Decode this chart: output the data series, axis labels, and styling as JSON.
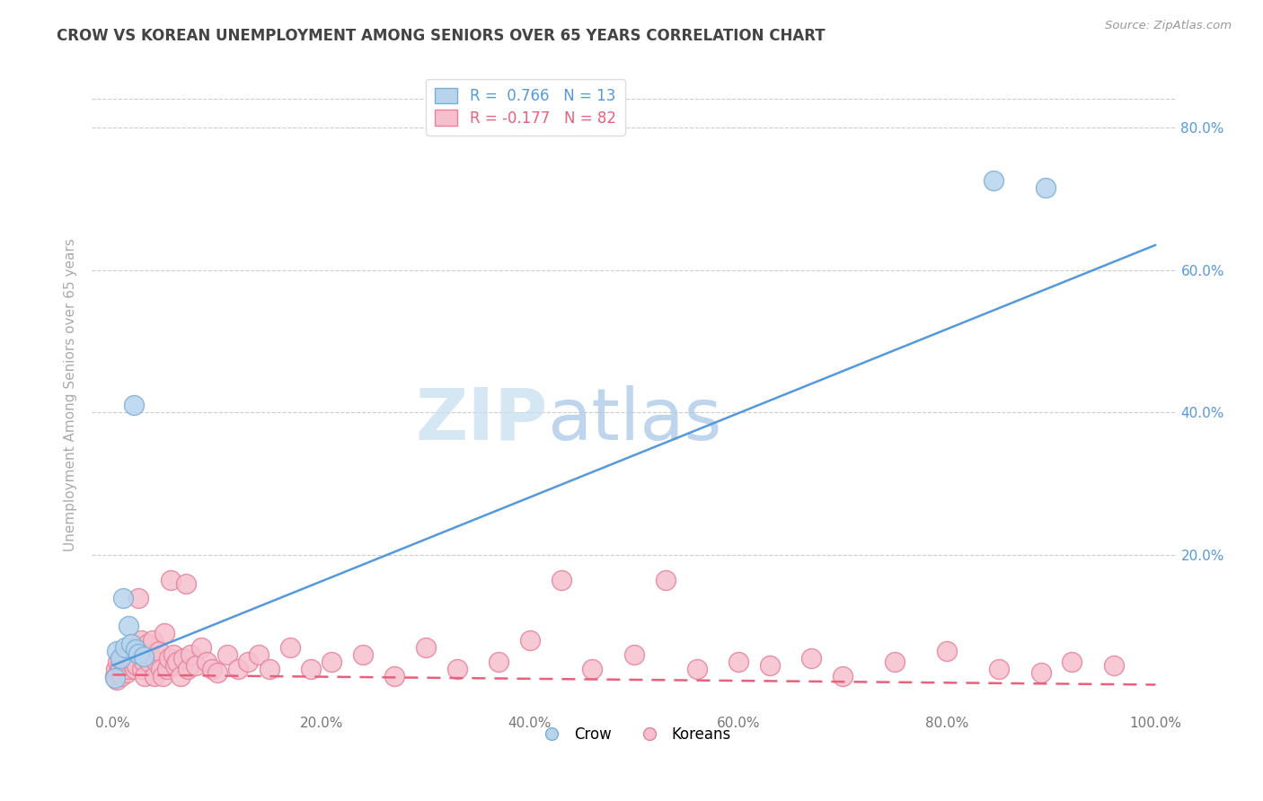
{
  "title": "CROW VS KOREAN UNEMPLOYMENT AMONG SENIORS OVER 65 YEARS CORRELATION CHART",
  "source": "Source: ZipAtlas.com",
  "ylabel": "Unemployment Among Seniors over 65 years",
  "xlim": [
    -0.02,
    1.02
  ],
  "ylim": [
    -0.02,
    0.87
  ],
  "xtick_labels": [
    "0.0%",
    "20.0%",
    "40.0%",
    "60.0%",
    "80.0%",
    "100.0%"
  ],
  "xtick_vals": [
    0,
    0.2,
    0.4,
    0.6,
    0.8,
    1.0
  ],
  "ytick_labels": [
    "20.0%",
    "40.0%",
    "60.0%",
    "80.0%"
  ],
  "ytick_vals": [
    0.2,
    0.4,
    0.6,
    0.8
  ],
  "crow_color": "#b8d4ed",
  "crow_edge_color": "#7aafd4",
  "korean_color": "#f5c0ce",
  "korean_edge_color": "#e8809a",
  "trendline_crow_color": "#5599dd",
  "trendline_korean_color": "#e8607a",
  "legend_crow_label": "R =  0.766   N = 13",
  "legend_korean_label": "R = -0.177   N = 82",
  "crow_bottom_label": "Crow",
  "korean_bottom_label": "Koreans",
  "watermark_zip": "ZIP",
  "watermark_atlas": "atlas",
  "crow_trendline_x": [
    0.0,
    1.0
  ],
  "crow_trendline_y": [
    0.045,
    0.635
  ],
  "korean_trendline_x": [
    0.0,
    1.0
  ],
  "korean_trendline_y": [
    0.032,
    0.018
  ],
  "crow_x": [
    0.002,
    0.004,
    0.007,
    0.01,
    0.012,
    0.015,
    0.018,
    0.022,
    0.025,
    0.03,
    0.02,
    0.845,
    0.895
  ],
  "crow_y": [
    0.028,
    0.065,
    0.055,
    0.14,
    0.07,
    0.1,
    0.075,
    0.068,
    0.062,
    0.058,
    0.41,
    0.725,
    0.715
  ],
  "korean_x": [
    0.002,
    0.003,
    0.004,
    0.005,
    0.006,
    0.007,
    0.008,
    0.009,
    0.01,
    0.011,
    0.012,
    0.013,
    0.014,
    0.015,
    0.016,
    0.017,
    0.018,
    0.02,
    0.021,
    0.022,
    0.023,
    0.025,
    0.026,
    0.027,
    0.028,
    0.03,
    0.031,
    0.033,
    0.035,
    0.036,
    0.038,
    0.04,
    0.042,
    0.044,
    0.046,
    0.048,
    0.05,
    0.052,
    0.054,
    0.056,
    0.058,
    0.06,
    0.062,
    0.065,
    0.068,
    0.07,
    0.072,
    0.075,
    0.08,
    0.085,
    0.09,
    0.095,
    0.1,
    0.11,
    0.12,
    0.13,
    0.14,
    0.15,
    0.17,
    0.19,
    0.21,
    0.24,
    0.27,
    0.3,
    0.33,
    0.37,
    0.4,
    0.43,
    0.46,
    0.5,
    0.53,
    0.56,
    0.6,
    0.63,
    0.67,
    0.7,
    0.75,
    0.8,
    0.85,
    0.89,
    0.92,
    0.96
  ],
  "korean_y": [
    0.03,
    0.04,
    0.025,
    0.05,
    0.035,
    0.045,
    0.03,
    0.055,
    0.06,
    0.04,
    0.05,
    0.035,
    0.06,
    0.04,
    0.05,
    0.055,
    0.065,
    0.05,
    0.04,
    0.07,
    0.045,
    0.14,
    0.06,
    0.08,
    0.04,
    0.05,
    0.03,
    0.075,
    0.05,
    0.06,
    0.08,
    0.03,
    0.05,
    0.065,
    0.04,
    0.03,
    0.09,
    0.04,
    0.055,
    0.165,
    0.06,
    0.045,
    0.05,
    0.03,
    0.055,
    0.16,
    0.04,
    0.06,
    0.045,
    0.07,
    0.05,
    0.04,
    0.035,
    0.06,
    0.04,
    0.05,
    0.06,
    0.04,
    0.07,
    0.04,
    0.05,
    0.06,
    0.03,
    0.07,
    0.04,
    0.05,
    0.08,
    0.165,
    0.04,
    0.06,
    0.165,
    0.04,
    0.05,
    0.045,
    0.055,
    0.03,
    0.05,
    0.065,
    0.04,
    0.035,
    0.05,
    0.045
  ]
}
